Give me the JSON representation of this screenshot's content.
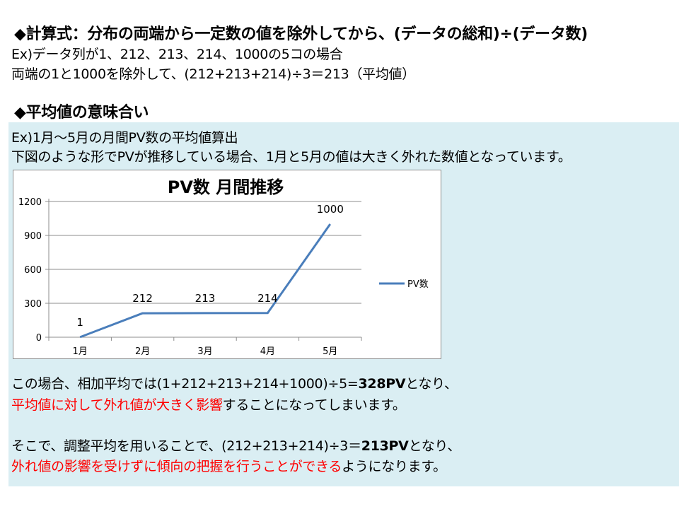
{
  "formula": {
    "heading": "◆計算式：分布の両端から一定数の値を除外してから、(データの総和)÷(データ数)",
    "example_line1": "Ex)データ列が1、212、213、214、1000の5コの場合",
    "example_line2": "両端の1と1000を除外して、(212+213+214)÷3＝213（平均値）"
  },
  "meaning": {
    "heading": "◆平均値の意味合い",
    "line1": "Ex)1月～5月の月間PV数の平均値算出",
    "line2": "下図のような形でPVが推移している場合、1月と5月の値は大きく外れた数値となっています。"
  },
  "chart_data": {
    "type": "line",
    "title": "PV数 月間推移",
    "categories": [
      "1月",
      "2月",
      "3月",
      "4月",
      "5月"
    ],
    "series": [
      {
        "name": "PV数",
        "values": [
          1,
          212,
          213,
          214,
          1000
        ],
        "color": "#4a7ebb"
      }
    ],
    "data_labels": [
      "1",
      "212",
      "213",
      "214",
      "1000"
    ],
    "yticks": [
      "0",
      "300",
      "600",
      "900",
      "1200"
    ],
    "ylim": [
      0,
      1200
    ],
    "grid": true,
    "legend_position": "right"
  },
  "conclusion": {
    "p1_pre": "この場合、相加平均では(1+212+213+214+1000)÷5=",
    "p1_bold": "328PV",
    "p1_post": "となり、",
    "p2_red": "平均値に対して外れ値が大きく影響",
    "p2_post": "することになってしまいます。",
    "p3_pre": "そこで、調整平均を用いることで、(212+213+214)÷3＝",
    "p3_bold": "213PV",
    "p3_post": "となり、",
    "p4_red": "外れ値の影響を受けずに傾向の把握を行うことができる",
    "p4_post": "ようになります。"
  }
}
